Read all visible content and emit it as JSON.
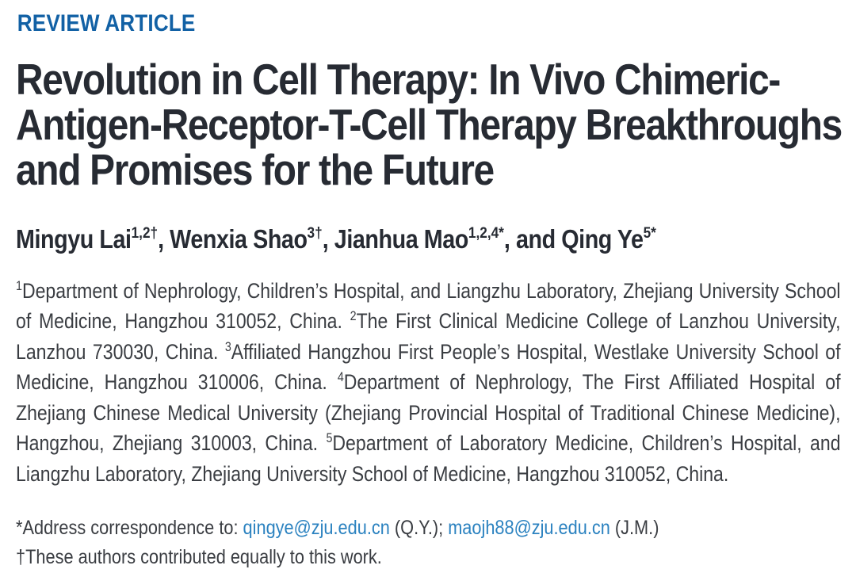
{
  "page": {
    "kicker": "REVIEW ARTICLE",
    "title_lines": [
      "Revolution in Cell Therapy: In Vivo Chimeric-",
      "Antigen-Receptor-T-Cell Therapy Breakthroughs",
      "and Promises for the Future"
    ]
  },
  "authors": [
    {
      "pre": "Mingyu Lai",
      "sup": "1,2†"
    },
    {
      "pre": ", Wenxia Shao",
      "sup": "3†"
    },
    {
      "pre": ", Jianhua Mao",
      "sup": "1,2,4*"
    },
    {
      "pre": ", and Qing Ye",
      "sup": "5*"
    }
  ],
  "affiliations": [
    {
      "sup": "1",
      "text": "Department of Nephrology, Children’s Hospital, and Liangzhu Laboratory, Zhejiang University School of Medicine, Hangzhou 310052, China. "
    },
    {
      "sup": "2",
      "text": "The First Clinical Medicine College of Lanzhou University, Lanzhou 730030, China. "
    },
    {
      "sup": "3",
      "text": "Affiliated Hangzhou First People’s Hospital, Westlake University School of Medicine, Hangzhou 310006, China. "
    },
    {
      "sup": "4",
      "text": "Department of Nephrology, The First Affiliated Hospital of Zhejiang Chinese Medical University (Zhejiang Provincial Hospital of Traditional Chinese Medicine), Hangzhou, Zhejiang 310003, China. "
    },
    {
      "sup": "5",
      "text": "Department of Laboratory Medicine, Children’s Hospital, and Liangzhu Laboratory, Zhejiang University School of Medicine, Hangzhou 310052, China."
    }
  ],
  "correspondence": {
    "segments": [
      {
        "text": "*Address correspondence to: ",
        "link": false
      },
      {
        "text": "qingye@zju.edu.cn",
        "link": true
      },
      {
        "text": " (Q.Y.); ",
        "link": false
      },
      {
        "text": "maojh88@zju.edu.cn",
        "link": true
      },
      {
        "text": " (J.M.)",
        "link": false
      }
    ]
  },
  "equal_contribution_note": "†These authors contributed equally to this work.",
  "colors": {
    "kicker_blue": "#1261a5",
    "link_blue": "#2b82c0",
    "title_dark": "#272b33",
    "body_gray": "#3a3d42",
    "background": "#ffffff"
  }
}
